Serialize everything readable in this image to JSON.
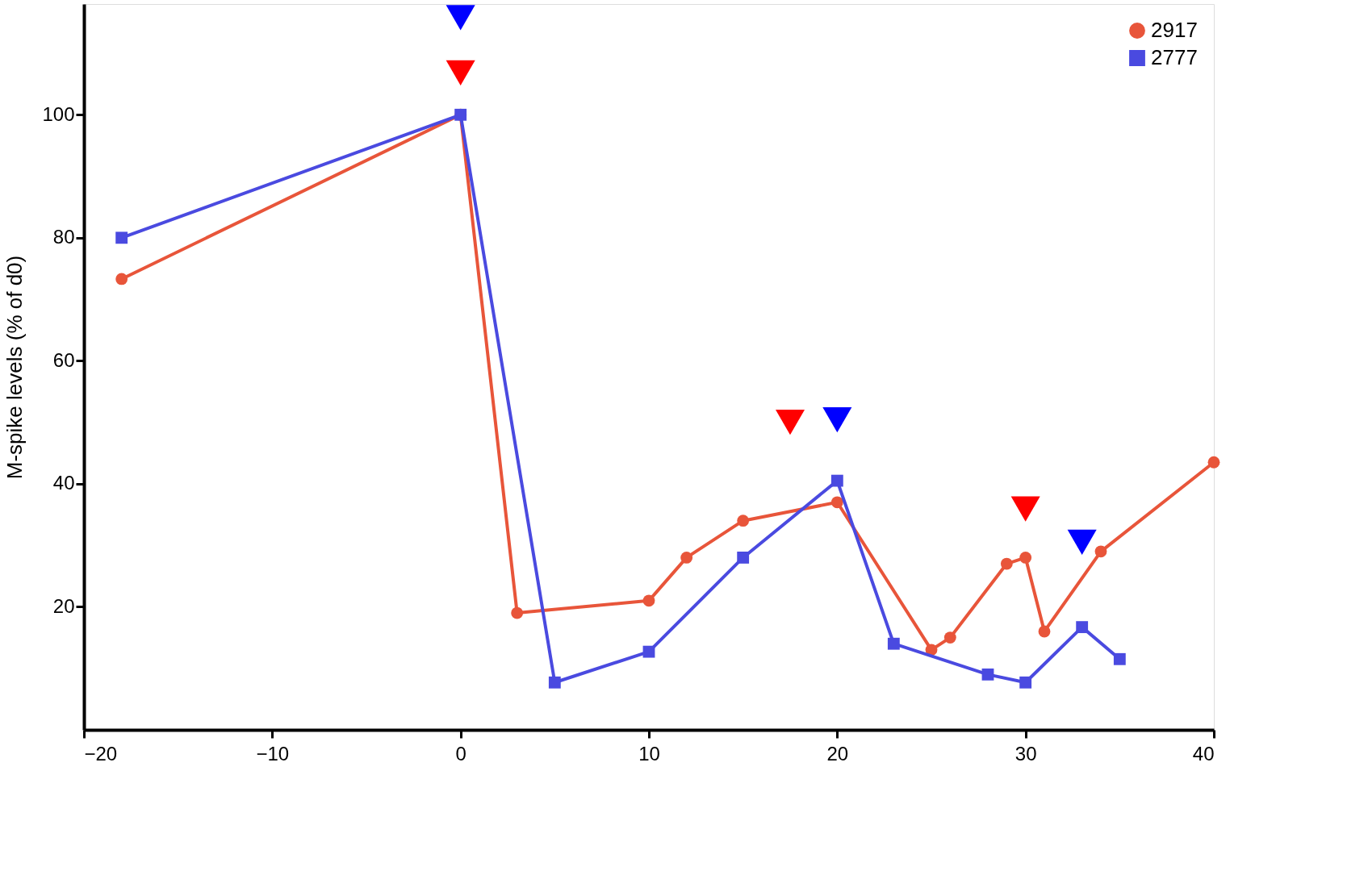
{
  "chart_data": {
    "type": "line",
    "ylabel": "M-spike levels (% of d0)",
    "xlim": [
      -20,
      40
    ],
    "xticks": [
      -20,
      -10,
      0,
      10,
      20,
      30,
      40
    ],
    "ylim": [
      0,
      118
    ],
    "yticks": [
      20,
      40,
      60,
      80,
      100
    ],
    "grid": false,
    "legend": "top right",
    "line_style": "solid",
    "series": [
      {
        "name": "2917",
        "color": "#e8553a",
        "marker": "circle",
        "x": [
          -18,
          0,
          3,
          10,
          12,
          15,
          20,
          25,
          26,
          29,
          30,
          31,
          34,
          40
        ],
        "values": [
          73.3,
          100,
          19,
          21,
          28,
          34,
          37,
          13,
          15,
          27,
          28,
          16,
          29,
          43.5
        ]
      },
      {
        "name": "2777",
        "color": "#4a4ae0",
        "marker": "square",
        "x": [
          -18,
          0,
          5,
          10,
          15,
          20,
          23,
          28,
          30,
          33,
          35
        ],
        "values": [
          80,
          100,
          7.7,
          12.7,
          28,
          40.5,
          14,
          9,
          7.7,
          16.7,
          11.5
        ]
      },
      {
        "type": "scatter",
        "color": "#ff0000",
        "marker": "triangle",
        "x": [
          0,
          17.5,
          30
        ],
        "values": [
          106.8,
          50,
          35.9
        ]
      },
      {
        "type": "scatter",
        "color": "#0000ff",
        "marker": "triangle",
        "x": [
          0,
          20,
          33
        ],
        "values": [
          115.8,
          50.4,
          30.5
        ]
      }
    ]
  }
}
